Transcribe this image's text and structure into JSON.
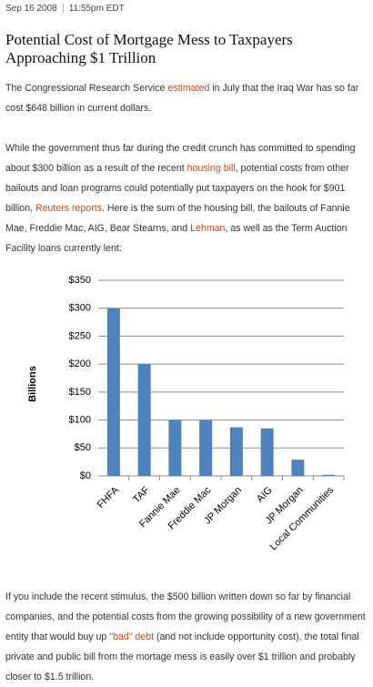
{
  "header": {
    "date": "Sep 16 2008",
    "time": "11:55pm EDT",
    "title": "Potential Cost of Mortgage Mess to Taxpayers Approaching $1 Trillion"
  },
  "paragraphs": [
    {
      "segments": [
        {
          "text": "The Congressional Research Service ",
          "link": false
        },
        {
          "text": "estimated",
          "link": true
        },
        {
          "text": " in July that the Iraq War has so far cost $648 billion in current dollars.",
          "link": false
        }
      ]
    },
    {
      "segments": [
        {
          "text": "While the government thus far during the credit crunch has committed to spending about $300 billion as a result of the recent ",
          "link": false
        },
        {
          "text": "housing bill",
          "link": true
        },
        {
          "text": ", potential costs from other bailouts and loan programs could potentially put taxpayers on the hook for $901 billion, ",
          "link": false
        },
        {
          "text": "Reuters reports",
          "link": true
        },
        {
          "text": ". Here is the sum of the housing bill, the bailouts of Fannie Mae, Freddie Mac, AIG, Bear Stearns, and ",
          "link": false
        },
        {
          "text": "Lehman",
          "link": true
        },
        {
          "text": ", as well as the Term Auction Facility loans currently lent:",
          "link": false
        }
      ]
    },
    {
      "segments": [
        {
          "text": "If you include the recent stimulus, the $500 billion written down so far by financial companies, and the potential costs from the growing possibility of a new government entity that would buy up ",
          "link": false
        },
        {
          "text": "\"bad\" debt",
          "link": true
        },
        {
          "text": " (and not include opportunity cost), the total final private and public bill from the mortage mess is easily over $1 trillion and probably closer to $1.5 trillion.",
          "link": false
        }
      ]
    }
  ],
  "chart_data": {
    "type": "bar",
    "y_label": "Billions",
    "categories": [
      "FHFA",
      "TAF",
      "Fannie Mae",
      "Freddie Mac",
      "JP Morgan",
      "AIG",
      "JP Morgan",
      "Local Communities"
    ],
    "values": [
      300,
      200,
      100,
      100,
      87,
      85,
      29,
      2
    ],
    "color": "#4f81bd",
    "ylim": [
      0,
      350
    ],
    "yticks": [
      {
        "value": 0,
        "label": "$0"
      },
      {
        "value": 50,
        "label": "$50"
      },
      {
        "value": 100,
        "label": "$100"
      },
      {
        "value": 150,
        "label": "$150"
      },
      {
        "value": 200,
        "label": "$200"
      },
      {
        "value": 250,
        "label": "$250"
      },
      {
        "value": 300,
        "label": "$300"
      },
      {
        "value": 350,
        "label": "$350"
      }
    ],
    "grid": true
  }
}
